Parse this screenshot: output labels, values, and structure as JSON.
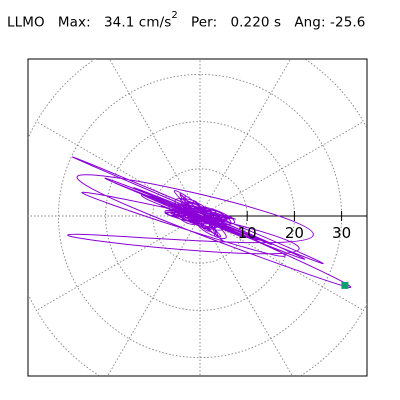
{
  "header": {
    "station": "LLMO",
    "max_label": "Max:",
    "max_value": "34.1 cm/s",
    "max_unit_exp": "2",
    "per_label": "Per:",
    "per_value": "0.220 s",
    "ang_label": "Ang:",
    "ang_value": "-25.6"
  },
  "chart_data": {
    "type": "polar-orbit",
    "title": "",
    "rings": [
      10,
      20,
      30,
      40
    ],
    "radial_lines_deg": [
      0,
      30,
      60,
      90,
      120,
      150,
      180,
      210,
      240,
      270,
      300,
      330
    ],
    "tick_labels": [
      "10",
      "20",
      "30"
    ],
    "xlim": [
      -36,
      36
    ],
    "ylim": [
      -34,
      34
    ],
    "max_amplitude": 34.1,
    "max_angle_deg": -25.6,
    "end_marker": {
      "x": 30.7,
      "y": -14.7
    },
    "colors": {
      "trace": "#8b00d6",
      "marker": "#0e9e6e",
      "grid": "#808080",
      "frame": "#000000"
    },
    "grid": "dotted",
    "series": [
      {
        "trace": [
          [
            0,
            0
          ],
          [
            3,
            -2
          ],
          [
            -4,
            1.5
          ],
          [
            6,
            -3.2
          ],
          [
            -7,
            2.5
          ],
          [
            9,
            -4.5
          ],
          [
            -12,
            4.5
          ],
          [
            15,
            -6
          ],
          [
            -18,
            7
          ],
          [
            22,
            -9
          ],
          [
            -27,
            12.5
          ],
          [
            26,
            -10
          ],
          [
            -20,
            8
          ],
          [
            18,
            -8.5
          ],
          [
            -25,
            5
          ],
          [
            21,
            -7
          ],
          [
            -28,
            -4
          ],
          [
            24,
            -4
          ],
          [
            -26,
            8
          ],
          [
            30,
            -14.7
          ],
          [
            0,
            0
          ],
          [
            -10,
            3
          ],
          [
            12,
            -5
          ],
          [
            -14,
            6
          ],
          [
            13,
            -5
          ],
          [
            -8,
            2
          ],
          [
            7,
            -3
          ],
          [
            -5,
            1
          ],
          [
            4,
            -2
          ],
          [
            -3,
            1
          ],
          [
            2,
            -1
          ]
        ]
      }
    ]
  }
}
